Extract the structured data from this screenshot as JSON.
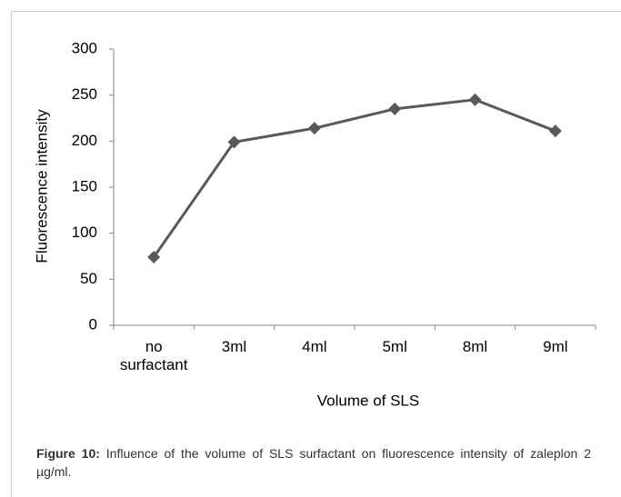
{
  "chart_data": {
    "type": "line",
    "categories": [
      "no surfactant",
      "3ml",
      "4ml",
      "5ml",
      "8ml",
      "9ml"
    ],
    "series": [
      {
        "name": "Fluorescence intensity",
        "color": "#595959",
        "values": [
          74,
          199,
          214,
          235,
          245,
          211
        ]
      }
    ],
    "ylim": [
      0,
      300
    ],
    "yticks": [
      0,
      50,
      100,
      150,
      200,
      250,
      300
    ],
    "xlabel": "Volume of SLS",
    "ylabel": "Fluorescence intensity",
    "grid": false
  },
  "caption": {
    "label": "Figure 10:",
    "text": "Influence of the volume of SLS surfactant on fluorescence intensity of zaleplon 2 µg/ml."
  }
}
